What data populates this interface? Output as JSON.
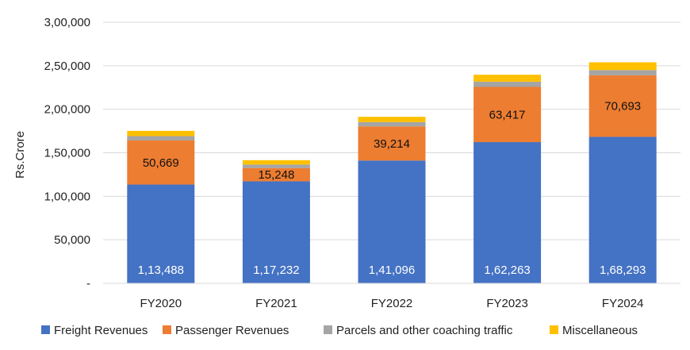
{
  "chart_data": {
    "type": "bar",
    "stacked": true,
    "title": "",
    "xlabel": "",
    "ylabel": "Rs.Crore",
    "ylim": [
      0,
      300000
    ],
    "yticks": [
      0,
      50000,
      100000,
      150000,
      200000,
      250000,
      300000
    ],
    "ytick_labels": [
      "-",
      "50,000",
      "1,00,000",
      "1,50,000",
      "2,00,000",
      "2,50,000",
      "3,00,000"
    ],
    "grid": true,
    "legend_position": "bottom",
    "categories": [
      "FY2020",
      "FY2021",
      "FY2022",
      "FY2023",
      "FY2024"
    ],
    "series": [
      {
        "name": "Freight Revenues",
        "color": "#4472C4",
        "values": [
          113488,
          117232,
          141096,
          162263,
          168293
        ],
        "labels": [
          "1,13,488",
          "1,17,232",
          "1,41,096",
          "1,62,263",
          "1,68,293"
        ]
      },
      {
        "name": "Passenger Revenues",
        "color": "#ED7D31",
        "values": [
          50669,
          15248,
          39214,
          63417,
          70693
        ],
        "labels": [
          "50,669",
          "15,248",
          "39,214",
          "63,417",
          "70,693"
        ]
      },
      {
        "name": "Parcels and other coaching traffic",
        "color": "#A5A5A5",
        "values": [
          5000,
          4000,
          5000,
          6000,
          6000
        ]
      },
      {
        "name": "Miscellaneous",
        "color": "#FFC000",
        "values": [
          6000,
          5000,
          6000,
          8000,
          9000
        ]
      }
    ]
  }
}
